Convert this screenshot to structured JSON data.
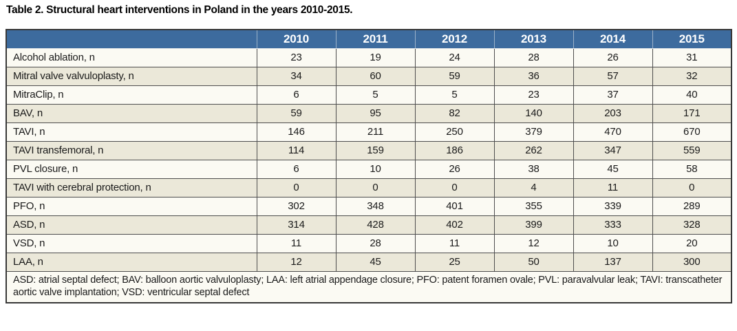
{
  "title": "Table 2. Structural heart interventions in Poland in the years 2010-2015.",
  "table": {
    "columns": [
      "2010",
      "2011",
      "2012",
      "2013",
      "2014",
      "2015"
    ],
    "rows": [
      {
        "label": "Alcohol ablation, n",
        "values": [
          23,
          19,
          24,
          28,
          26,
          31
        ]
      },
      {
        "label": "Mitral valve valvuloplasty, n",
        "values": [
          34,
          60,
          59,
          36,
          57,
          32
        ]
      },
      {
        "label": "MitraClip, n",
        "values": [
          6,
          5,
          5,
          23,
          37,
          40
        ]
      },
      {
        "label": "BAV, n",
        "values": [
          59,
          95,
          82,
          140,
          203,
          171
        ]
      },
      {
        "label": "TAVI, n",
        "values": [
          146,
          211,
          250,
          379,
          470,
          670
        ]
      },
      {
        "label": "TAVI transfemoral, n",
        "values": [
          114,
          159,
          186,
          262,
          347,
          559
        ]
      },
      {
        "label": "PVL closure, n",
        "values": [
          6,
          10,
          26,
          38,
          45,
          58
        ]
      },
      {
        "label": "TAVI with cerebral protection, n",
        "values": [
          0,
          0,
          0,
          4,
          11,
          0
        ]
      },
      {
        "label": "PFO, n",
        "values": [
          302,
          348,
          401,
          355,
          339,
          289
        ]
      },
      {
        "label": "ASD, n",
        "values": [
          314,
          428,
          402,
          399,
          333,
          328
        ]
      },
      {
        "label": "VSD, n",
        "values": [
          11,
          28,
          11,
          12,
          10,
          20
        ]
      },
      {
        "label": "LAA, n",
        "values": [
          12,
          45,
          25,
          50,
          137,
          300
        ]
      }
    ],
    "footnote": "ASD: atrial septal defect; BAV: balloon aortic valvuloplasty; LAA: left atrial appendage closure; PFO: patent foramen ovale; PVL: paravalvular leak; TAVI: transcatheter aortic valve implantation; VSD: ventricular septal defect"
  },
  "colors": {
    "header_bg": "#3d6b9e",
    "header_text": "#ffffff",
    "header_sep": "#9db3ca",
    "row_odd": "#fbfaf3",
    "row_even": "#ebe8d9",
    "border_inner": "#4d4d4d",
    "border_outer": "#383838"
  }
}
